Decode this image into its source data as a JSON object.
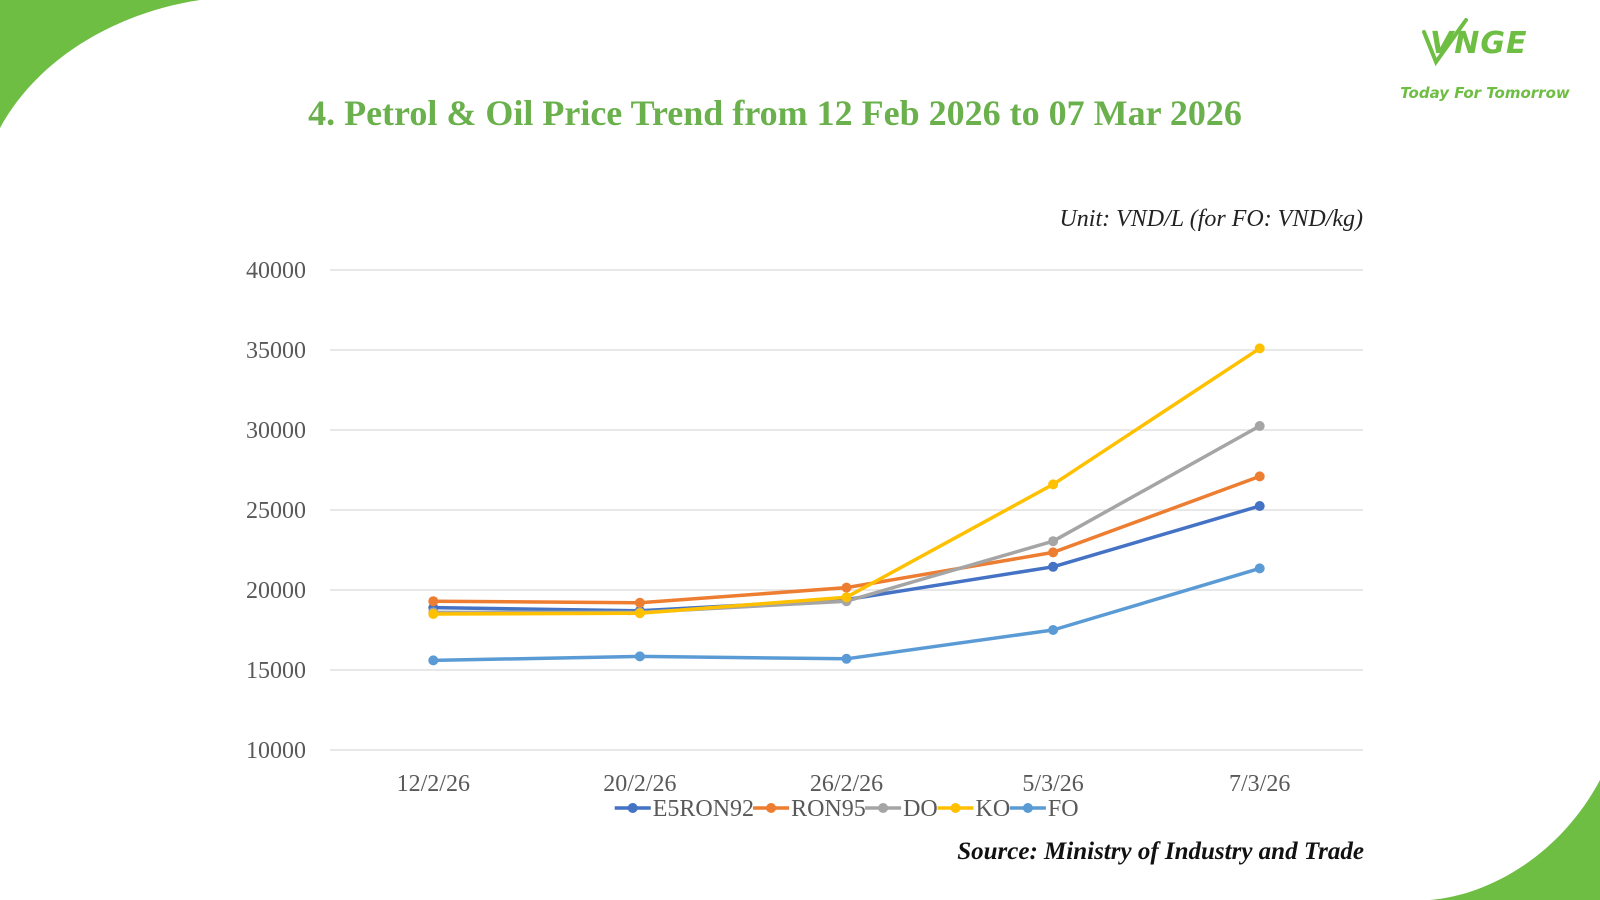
{
  "slide": {
    "title": "4. Petrol & Oil Price Trend from 12 Feb 2026 to 07 Mar 2026",
    "unit_note": "Unit: VND/L (for FO: VND/kg)",
    "source": "Source: Ministry of Industry and Trade"
  },
  "logo": {
    "mark": "VNGE",
    "tagline": "Today For Tomorrow"
  },
  "colors": {
    "brand_green": "#6ab04c",
    "E5RON92": "#4472c4",
    "RON95": "#ed7d31",
    "DO": "#a5a5a5",
    "KO": "#ffc000",
    "FO": "#5b9bd5"
  },
  "chart_data": {
    "type": "line",
    "categories": [
      "12/2/26",
      "20/2/26",
      "26/2/26",
      "5/3/26",
      "7/3/26"
    ],
    "series": [
      {
        "name": "E5RON92",
        "color": "#4472c4",
        "values": [
          18900,
          18700,
          19400,
          21450,
          25250
        ]
      },
      {
        "name": "RON95",
        "color": "#ed7d31",
        "values": [
          19300,
          19200,
          20150,
          22350,
          27100
        ]
      },
      {
        "name": "DO",
        "color": "#a5a5a5",
        "values": [
          18600,
          18600,
          19300,
          23050,
          30250
        ]
      },
      {
        "name": "KO",
        "color": "#ffc000",
        "values": [
          18500,
          18550,
          19550,
          26600,
          35100
        ]
      },
      {
        "name": "FO",
        "color": "#5b9bd5",
        "values": [
          15600,
          15850,
          15700,
          17500,
          21350
        ]
      }
    ],
    "ylim": [
      10000,
      40000
    ],
    "yticks": [
      10000,
      15000,
      20000,
      25000,
      30000,
      35000,
      40000
    ],
    "grid": true,
    "legend_position": "bottom"
  }
}
